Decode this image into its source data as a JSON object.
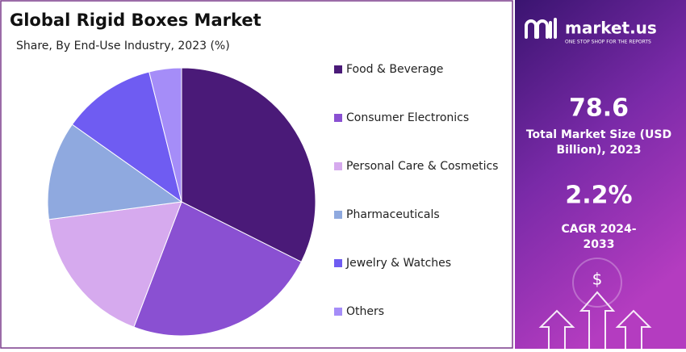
{
  "chart_data": {
    "type": "pie",
    "title": "Global Rigid Boxes Market",
    "subtitle": "Share, By End-Use Industry, 2023 (%)",
    "categories": [
      "Food & Beverage",
      "Consumer Electronics",
      "Personal Care & Cosmetics",
      "Pharmaceuticals",
      "Jewelry & Watches",
      "Others"
    ],
    "values": [
      32.4,
      23.4,
      17.1,
      11.9,
      11.3,
      3.9
    ],
    "colors": [
      "#4a1a78",
      "#8a50d2",
      "#d6aaee",
      "#8fa9df",
      "#6f5cf2",
      "#a58df8"
    ],
    "legend": "right"
  },
  "panel": {
    "brand": "market.us",
    "tagline": "ONE STOP SHOP FOR THE REPORTS",
    "market_size": "78.6",
    "market_size_label": "Total Market Size (USD Billion), 2023",
    "cagr": "2.2%",
    "cagr_label": "CAGR 2024-2033"
  }
}
